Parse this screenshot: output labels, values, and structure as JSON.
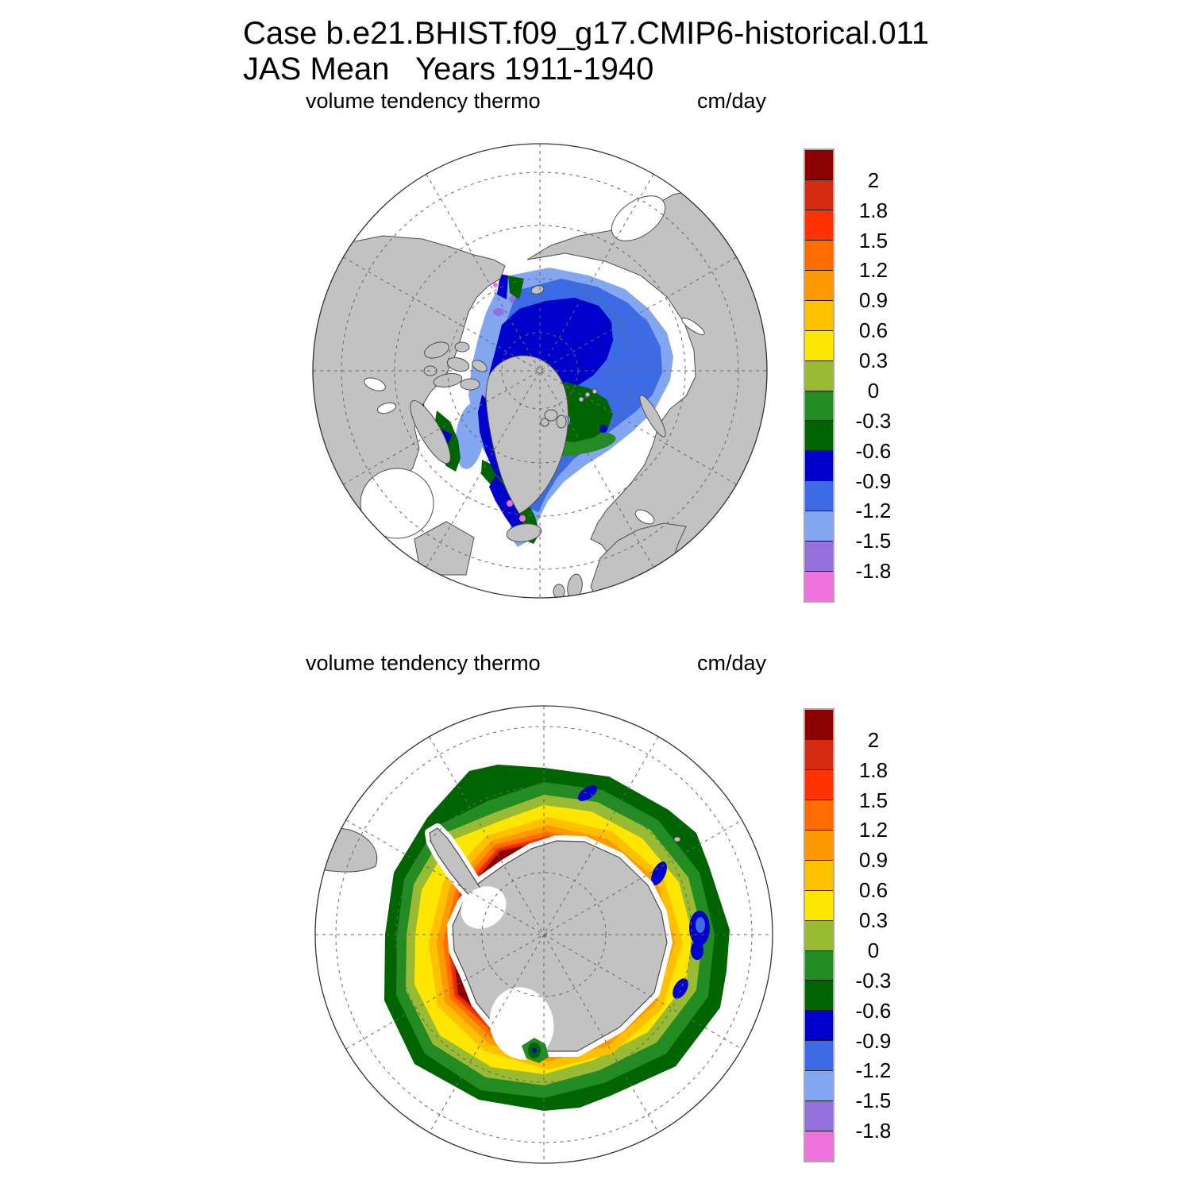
{
  "title": {
    "line1": "Case b.e21.BHIST.f09_g17.CMIP6-historical.011",
    "line2": "JAS Mean   Years 1911-1940"
  },
  "panels": [
    {
      "id": "north",
      "hemisphere": "Northern (Arctic)",
      "variable_label": "volume tendency thermo",
      "units_label": "cm/day"
    },
    {
      "id": "south",
      "hemisphere": "Southern (Antarctic)",
      "variable_label": "volume tendency thermo",
      "units_label": "cm/day"
    }
  ],
  "colorbar": {
    "tick_labels": [
      "2",
      "1.8",
      "1.5",
      "1.2",
      "0.9",
      "0.6",
      "0.3",
      "0",
      "-0.3",
      "-0.6",
      "-0.9",
      "-1.2",
      "-1.5",
      "-1.8"
    ],
    "colors_top_to_bottom": [
      "#8b0000",
      "#d52b10",
      "#ff3300",
      "#ff6d00",
      "#ff9900",
      "#ffc000",
      "#ffe600",
      "#99bb33",
      "#228b22",
      "#006400",
      "#0000cc",
      "#3d6be5",
      "#82a6ef",
      "#9370db",
      "#ee73dc"
    ]
  },
  "map_colors": {
    "land": "#c2c2c2",
    "coastline": "#4d4d4d",
    "ocean": "#ffffff",
    "graticule": "#666666",
    "map_outline": "#333333"
  },
  "chart_data": [
    {
      "type": "heatmap",
      "subtype": "filled-contour polar stereographic map",
      "panel": "top",
      "title": "volume tendency thermo",
      "units": "cm/day",
      "region": "Arctic / Northern Hemisphere",
      "legend_position": "right",
      "grid": "dashed graticule, 30-degree meridians and latitude circles",
      "contour_levels": [
        2,
        1.8,
        1.5,
        1.2,
        0.9,
        0.6,
        0.3,
        0,
        -0.3,
        -0.6,
        -0.9,
        -1.2,
        -1.5,
        -1.8
      ],
      "palette": [
        "#8b0000",
        "#d52b10",
        "#ff3300",
        "#ff6d00",
        "#ff9900",
        "#ffc000",
        "#ffe600",
        "#99bb33",
        "#228b22",
        "#006400",
        "#0000cc",
        "#3d6be5",
        "#82a6ef",
        "#9370db",
        "#ee73dc"
      ],
      "regions": [
        {
          "area": "central Arctic Ocean core",
          "value_range_cm_per_day": [
            -0.9,
            -0.6
          ]
        },
        {
          "area": "ring around central pack",
          "value_range_cm_per_day": [
            -1.2,
            -0.9
          ]
        },
        {
          "area": "outer pack toward Siberian shelf seas",
          "value_range_cm_per_day": [
            -1.5,
            -1.2
          ]
        },
        {
          "area": "patches along Siberian and Canadian coasts",
          "value_range_cm_per_day": [
            -1.8,
            -1.5
          ]
        },
        {
          "area": "small flecks near coasts and SE Greenland",
          "value_range_cm_per_day": [
            -2.1,
            -1.8
          ]
        },
        {
          "area": "Barents/Kara seas, Chukchi wedge, Foxe Basin, Baffin Bay, Denmark Strait",
          "value_range_cm_per_day": [
            -0.6,
            0
          ]
        },
        {
          "area": "ice-free ocean and land",
          "value_range_cm_per_day": null
        }
      ]
    },
    {
      "type": "heatmap",
      "subtype": "filled-contour polar stereographic map",
      "panel": "bottom",
      "title": "volume tendency thermo",
      "units": "cm/day",
      "region": "Antarctic / Southern Hemisphere",
      "legend_position": "right",
      "grid": "dashed graticule, 30-degree meridians and latitude circles",
      "contour_levels": [
        2,
        1.8,
        1.5,
        1.2,
        0.9,
        0.6,
        0.3,
        0,
        -0.3,
        -0.6,
        -0.9,
        -1.2,
        -1.5,
        -1.8
      ],
      "palette": [
        "#8b0000",
        "#d52b10",
        "#ff3300",
        "#ff6d00",
        "#ff9900",
        "#ffc000",
        "#ffe600",
        "#99bb33",
        "#228b22",
        "#006400",
        "#0000cc",
        "#3d6be5",
        "#82a6ef",
        "#9370db",
        "#ee73dc"
      ],
      "regions": [
        {
          "area": "narrow band hugging Antarctic coast",
          "value_range_cm_per_day": [
            2,
            2.5
          ]
        },
        {
          "area": "thin rings just offshore",
          "value_range_cm_per_day": [
            0.9,
            2
          ]
        },
        {
          "area": "broad annulus over most of the ice pack",
          "value_range_cm_per_day": [
            0.3,
            0.6
          ]
        },
        {
          "area": "yellow-green transition ring",
          "value_range_cm_per_day": [
            0,
            0.3
          ]
        },
        {
          "area": "green outer ice edge",
          "value_range_cm_per_day": [
            -0.6,
            0
          ]
        },
        {
          "area": "isolated blue blobs along NE and E outer edge",
          "value_range_cm_per_day": [
            -1.2,
            -0.6
          ]
        },
        {
          "area": "open Southern Ocean and land",
          "value_range_cm_per_day": null
        }
      ]
    }
  ]
}
